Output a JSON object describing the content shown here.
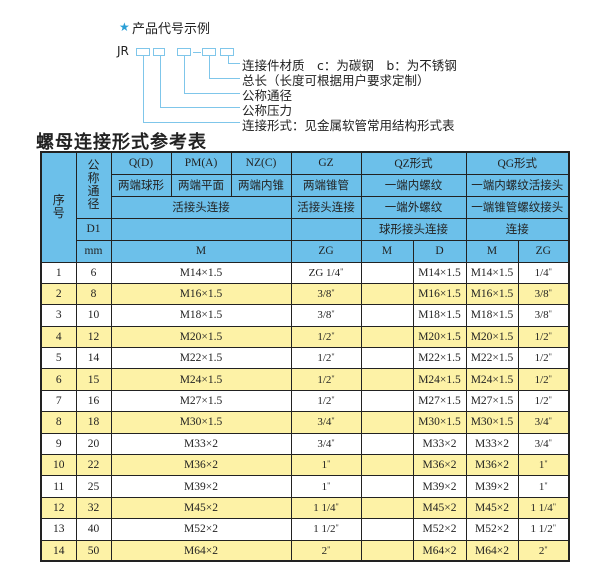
{
  "legend": {
    "star_icon": "star-icon",
    "title": "产品代号示例",
    "prefix": "JR",
    "items": [
      "连接件材质　c：为碳钢　b：为不锈钢",
      "总长（长度可根据用户要求定制）",
      "公称通径",
      "公称压力",
      "连接形式：见金属软管常用结构形式表"
    ],
    "line_color": "#7fc6ea"
  },
  "section_title": "螺母连接形式参考表",
  "colors": {
    "header": "#6cc0ea",
    "alt_row": "#fdf2a6"
  },
  "table": {
    "header": {
      "seq": "序号",
      "nominal": "公称通径",
      "d1": "D1",
      "mm": "mm",
      "q": "Q(D)",
      "pm": "PM(A)",
      "nz": "NZ(C)",
      "gz": "GZ",
      "qz": "QZ形式",
      "qg": "QG形式",
      "q_desc": "两端球形",
      "pm_desc": "两端平面",
      "nz_desc": "两端内锥",
      "gz_desc": "两端锥管",
      "qz_desc": "一端内螺纹",
      "qg_desc": "一端内螺纹活接头",
      "qpmnz_conn": "活接头连接",
      "gz_conn": "活接头连接",
      "qz_conn2": "一端外螺纹",
      "qg_conn2": "一端锥管螺纹接头",
      "qz_conn3": "球形接头连接",
      "qg_conn3": "连接",
      "m": "M",
      "zg": "ZG",
      "qz_m": "M",
      "qz_d": "D",
      "qg_m": "M",
      "qg_zg": "ZG"
    },
    "rows": [
      {
        "no": "1",
        "dn": "6",
        "m": "M14×1.5",
        "zg": "ZG 1/4",
        "qz_m": "",
        "qz_d": "M14×1.5",
        "qg_m": "M14×1.5",
        "qg_zg": "1/4"
      },
      {
        "no": "2",
        "dn": "8",
        "m": "M16×1.5",
        "zg": "3/8",
        "qz_m": "",
        "qz_d": "M16×1.5",
        "qg_m": "M16×1.5",
        "qg_zg": "3/8"
      },
      {
        "no": "3",
        "dn": "10",
        "m": "M18×1.5",
        "zg": "3/8",
        "qz_m": "",
        "qz_d": "M18×1.5",
        "qg_m": "M18×1.5",
        "qg_zg": "3/8"
      },
      {
        "no": "4",
        "dn": "12",
        "m": "M20×1.5",
        "zg": "1/2",
        "qz_m": "",
        "qz_d": "M20×1.5",
        "qg_m": "M20×1.5",
        "qg_zg": "1/2"
      },
      {
        "no": "5",
        "dn": "14",
        "m": "M22×1.5",
        "zg": "1/2",
        "qz_m": "",
        "qz_d": "M22×1.5",
        "qg_m": "M22×1.5",
        "qg_zg": "1/2"
      },
      {
        "no": "6",
        "dn": "15",
        "m": "M24×1.5",
        "zg": "1/2",
        "qz_m": "",
        "qz_d": "M24×1.5",
        "qg_m": "M24×1.5",
        "qg_zg": "1/2"
      },
      {
        "no": "7",
        "dn": "16",
        "m": "M27×1.5",
        "zg": "1/2",
        "qz_m": "",
        "qz_d": "M27×1.5",
        "qg_m": "M27×1.5",
        "qg_zg": "1/2"
      },
      {
        "no": "8",
        "dn": "18",
        "m": "M30×1.5",
        "zg": "3/4",
        "qz_m": "",
        "qz_d": "M30×1.5",
        "qg_m": "M30×1.5",
        "qg_zg": "3/4"
      },
      {
        "no": "9",
        "dn": "20",
        "m": "M33×2",
        "zg": "3/4",
        "qz_m": "",
        "qz_d": "M33×2",
        "qg_m": "M33×2",
        "qg_zg": "3/4"
      },
      {
        "no": "10",
        "dn": "22",
        "m": "M36×2",
        "zg": "1",
        "qz_m": "",
        "qz_d": "M36×2",
        "qg_m": "M36×2",
        "qg_zg": "1"
      },
      {
        "no": "11",
        "dn": "25",
        "m": "M39×2",
        "zg": "1",
        "qz_m": "",
        "qz_d": "M39×2",
        "qg_m": "M39×2",
        "qg_zg": "1"
      },
      {
        "no": "12",
        "dn": "32",
        "m": "M45×2",
        "zg": "1 1/4",
        "qz_m": "",
        "qz_d": "M45×2",
        "qg_m": "M45×2",
        "qg_zg": "1 1/4"
      },
      {
        "no": "13",
        "dn": "40",
        "m": "M52×2",
        "zg": "1 1/2",
        "qz_m": "",
        "qz_d": "M52×2",
        "qg_m": "M52×2",
        "qg_zg": "1 1/2"
      },
      {
        "no": "14",
        "dn": "50",
        "m": "M64×2",
        "zg": "2",
        "qz_m": "",
        "qz_d": "M64×2",
        "qg_m": "M64×2",
        "qg_zg": "2"
      }
    ]
  }
}
